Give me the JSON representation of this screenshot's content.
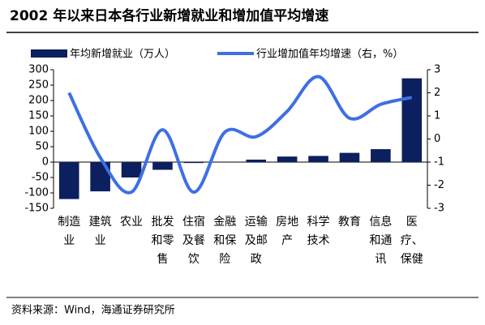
{
  "chart_data": {
    "type": "bar_line",
    "title": "2002 年以来日本各行业新增就业和增加值平均增速",
    "source": "资料来源：Wind，海通证券研究所",
    "categories": [
      "制造\n业",
      "建筑\n业",
      "农业",
      "批发\n和零\n售",
      "住宿\n及餐\n饮",
      "金融\n和保\n险",
      "运输\n及邮\n政",
      "房地\n产",
      "科学\n技术",
      "教育",
      "信息\n和通\n讯",
      "医\n疗、\n保健"
    ],
    "series": [
      {
        "name": "年均新增就业（万人）",
        "type": "bar",
        "color": "#0c1f5e",
        "values": [
          -120,
          -95,
          -50,
          -25,
          -3,
          0,
          8,
          18,
          20,
          30,
          42,
          272
        ]
      },
      {
        "name": "行业增加值年均增速（右，%）",
        "type": "line",
        "axis": "y2",
        "color": "#3e6fe3",
        "values": [
          2.0,
          -0.8,
          -2.3,
          0.4,
          -2.3,
          0.3,
          0.1,
          1.2,
          2.7,
          0.9,
          1.5,
          1.8
        ]
      }
    ],
    "ylim": [
      -150,
      300
    ],
    "yticks": [
      -150,
      -100,
      -50,
      0,
      50,
      100,
      150,
      200,
      250,
      300
    ],
    "y2lim": [
      -3,
      3
    ],
    "y2ticks": [
      -3,
      -2,
      -1,
      0,
      1,
      2,
      3
    ],
    "legend": "top"
  }
}
